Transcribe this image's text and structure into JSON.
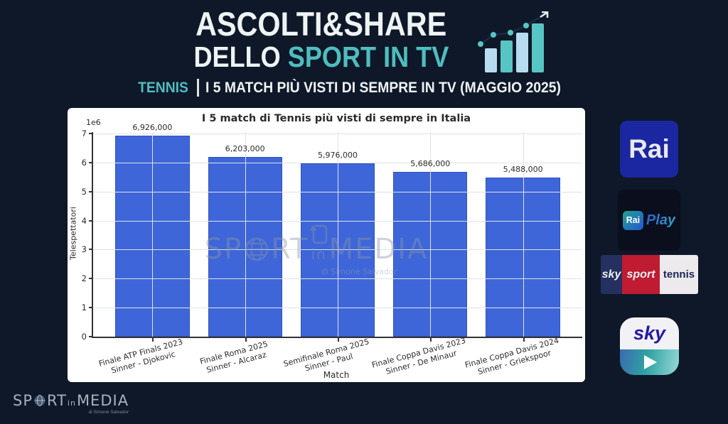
{
  "page": {
    "background": "#0e1828",
    "accent_teal": "#4fbdbf"
  },
  "header": {
    "title_line1": "ASCOLTI&SHARE",
    "title_line2_prefix": "DELLO ",
    "title_line2_accent": "SPORT IN TV",
    "subtitle": {
      "category": "TENNIS",
      "separator": "|",
      "text": "I 5 MATCH PIÙ VISTI DI SEMPRE IN TV (MAGGIO 2025)"
    }
  },
  "chart_data": {
    "type": "bar",
    "title": "I 5 match di Tennis più visti di sempre in Italia",
    "xlabel": "Match",
    "ylabel": "Telespettatori",
    "y_offset_label": "1e6",
    "ylim": [
      0,
      7050000
    ],
    "yticks": [
      0,
      1,
      2,
      3,
      4,
      5,
      6,
      7
    ],
    "grid": true,
    "bar_color": "#3e66d8",
    "bar_edge_color": "#2d52c7",
    "categories": [
      {
        "line1": "Finale ATP Finals 2023",
        "line2": "Sinner - Djokovic"
      },
      {
        "line1": "Finale Roma 2025",
        "line2": "Sinner - Alcaraz"
      },
      {
        "line1": "Semifinale Roma 2025",
        "line2": "Sinner - Paul"
      },
      {
        "line1": "Finale Coppa Davis 2023",
        "line2": "Sinner - De Minaur"
      },
      {
        "line1": "Finale Coppa Davis 2024",
        "line2": "Sinner - Griekspoor"
      }
    ],
    "values": [
      6926000,
      6203000,
      5976000,
      5686000,
      5488000
    ],
    "value_labels": [
      "6,926,000",
      "6,203,000",
      "5,976,000",
      "5,686,000",
      "5,488,000"
    ]
  },
  "watermark": {
    "part1": "SP",
    "part2": "RT",
    "part3": "in",
    "part4": "MEDIA",
    "tagline": "di Simone Salvador"
  },
  "logos": {
    "rai": {
      "label": "Rai"
    },
    "raiplay": {
      "rai_label": "Rai",
      "play_label": "Play"
    },
    "sky_sport_tennis": {
      "sky": "sky",
      "sport": "sport",
      "tennis": "tennis"
    },
    "sky_app": {
      "label": "sky"
    }
  },
  "footer_brand": {
    "part1": "SP",
    "part2": "RT",
    "part3": "in",
    "part4": "MEDIA",
    "tagline": "di Simone Salvador"
  }
}
